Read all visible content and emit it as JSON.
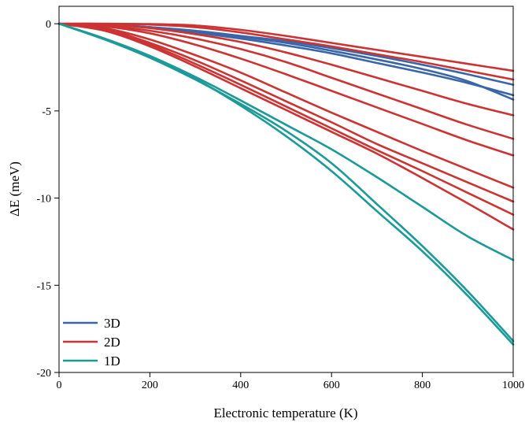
{
  "chart_data": {
    "type": "line",
    "title": "",
    "xlabel": "Electronic temperature (K)",
    "ylabel": "ΔE (meV)",
    "xlim": [
      0,
      1000
    ],
    "ylim": [
      -20,
      1
    ],
    "xticks": [
      0,
      200,
      400,
      600,
      800,
      1000
    ],
    "yticks": [
      0,
      -5,
      -10,
      -15,
      -20
    ],
    "xtick_labels": [
      "0",
      "200",
      "400",
      "600",
      "800",
      "1000"
    ],
    "ytick_labels": [
      "0",
      "-5",
      "-10",
      "-15",
      "-20"
    ],
    "grid": false,
    "legend_position": "bottom-left",
    "legend": [
      {
        "label": "3D",
        "color": "#3a66a8"
      },
      {
        "label": "2D",
        "color": "#cc3333"
      },
      {
        "label": "1D",
        "color": "#1b9a98"
      }
    ],
    "x": [
      0,
      100,
      200,
      300,
      400,
      500,
      600,
      700,
      800,
      900,
      1000
    ],
    "series": [
      {
        "group": "3D",
        "color": "#3a66a8",
        "values": [
          0,
          -0.05,
          -0.2,
          -0.5,
          -0.85,
          -1.25,
          -1.7,
          -2.25,
          -2.8,
          -3.4,
          -4.1
        ]
      },
      {
        "group": "3D",
        "color": "#3a66a8",
        "values": [
          0,
          -0.05,
          -0.2,
          -0.45,
          -0.75,
          -1.1,
          -1.55,
          -2.05,
          -2.6,
          -3.3,
          -4.35
        ]
      },
      {
        "group": "3D",
        "color": "#3a66a8",
        "values": [
          0,
          -0.05,
          -0.2,
          -0.4,
          -0.7,
          -1.0,
          -1.4,
          -1.85,
          -2.35,
          -2.9,
          -3.5
        ]
      },
      {
        "group": "2D",
        "color": "#cc3333",
        "values": [
          0,
          0,
          -0.02,
          -0.1,
          -0.35,
          -0.7,
          -1.1,
          -1.5,
          -1.9,
          -2.3,
          -2.7
        ]
      },
      {
        "group": "2D",
        "color": "#cc3333",
        "values": [
          0,
          0,
          -0.05,
          -0.2,
          -0.5,
          -0.9,
          -1.3,
          -1.75,
          -2.2,
          -2.7,
          -3.2
        ]
      },
      {
        "group": "2D",
        "color": "#cc3333",
        "values": [
          0,
          -0.05,
          -0.25,
          -0.6,
          -1.05,
          -1.65,
          -2.35,
          -3.1,
          -3.85,
          -4.6,
          -5.25
        ]
      },
      {
        "group": "2D",
        "color": "#cc3333",
        "values": [
          0,
          -0.1,
          -0.4,
          -0.85,
          -1.45,
          -2.2,
          -3.1,
          -4.0,
          -4.9,
          -5.8,
          -6.6
        ]
      },
      {
        "group": "2D",
        "color": "#cc3333",
        "values": [
          0,
          -0.15,
          -0.55,
          -1.2,
          -2.0,
          -2.9,
          -3.85,
          -4.8,
          -5.75,
          -6.7,
          -7.55
        ]
      },
      {
        "group": "2D",
        "color": "#cc3333",
        "values": [
          0,
          -0.25,
          -0.9,
          -1.8,
          -2.8,
          -3.95,
          -5.1,
          -6.2,
          -7.3,
          -8.35,
          -9.4
        ]
      },
      {
        "group": "2D",
        "color": "#cc3333",
        "values": [
          0,
          -0.3,
          -1.1,
          -2.1,
          -3.25,
          -4.45,
          -5.65,
          -6.9,
          -8.0,
          -9.1,
          -10.2
        ]
      },
      {
        "group": "2D",
        "color": "#cc3333",
        "values": [
          0,
          -0.35,
          -1.2,
          -2.3,
          -3.5,
          -4.75,
          -6.0,
          -7.25,
          -8.45,
          -9.7,
          -10.95
        ]
      },
      {
        "group": "2D",
        "color": "#cc3333",
        "values": [
          0,
          -0.4,
          -1.3,
          -2.45,
          -3.7,
          -4.95,
          -6.2,
          -7.45,
          -8.85,
          -10.3,
          -11.8
        ]
      },
      {
        "group": "1D",
        "color": "#1b9a98",
        "values": [
          0,
          -0.85,
          -1.85,
          -3.05,
          -4.4,
          -5.8,
          -7.2,
          -8.8,
          -10.5,
          -12.2,
          -13.55
        ]
      },
      {
        "group": "1D",
        "color": "#1b9a98",
        "values": [
          0,
          -0.9,
          -1.95,
          -3.2,
          -4.6,
          -6.15,
          -8.0,
          -10.35,
          -12.75,
          -15.35,
          -18.2
        ]
      },
      {
        "group": "1D",
        "color": "#1b9a98",
        "values": [
          0,
          -0.85,
          -1.85,
          -3.15,
          -4.7,
          -6.45,
          -8.45,
          -10.75,
          -13.05,
          -15.6,
          -18.4
        ]
      }
    ]
  }
}
